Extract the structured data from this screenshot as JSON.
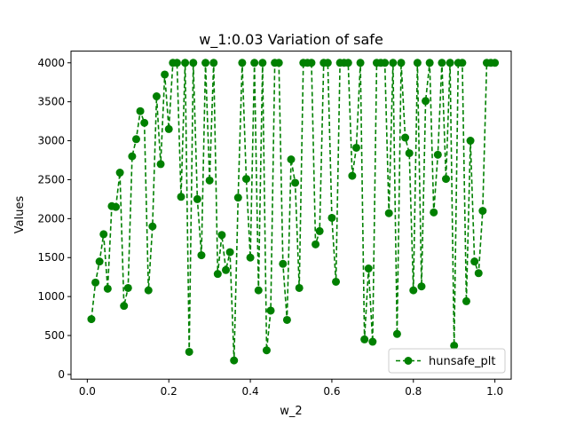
{
  "chart_data": {
    "type": "line",
    "title": "w_1:0.03 Variation of safe",
    "xlabel": "w_2",
    "ylabel": "Values",
    "xlim": [
      -0.04,
      1.04
    ],
    "ylim": [
      -60,
      4150
    ],
    "xticks": [
      0.0,
      0.2,
      0.4,
      0.6,
      0.8,
      1.0
    ],
    "xtick_labels": [
      "0.0",
      "0.2",
      "0.4",
      "0.6",
      "0.8",
      "1.0"
    ],
    "yticks": [
      0,
      500,
      1000,
      1500,
      2000,
      2500,
      3000,
      3500,
      4000
    ],
    "ytick_labels": [
      "0",
      "500",
      "1000",
      "1500",
      "2000",
      "2500",
      "3000",
      "3500",
      "4000"
    ],
    "grid": false,
    "legend_position": "lower-right",
    "series": [
      {
        "name": "hunsafe_plt",
        "color": "#008000",
        "line_style": "dashed",
        "marker": "circle",
        "x": [
          0.01,
          0.02,
          0.03,
          0.04,
          0.05,
          0.06,
          0.07,
          0.08,
          0.09,
          0.1,
          0.11,
          0.12,
          0.13,
          0.14,
          0.15,
          0.16,
          0.17,
          0.18,
          0.19,
          0.2,
          0.21,
          0.22,
          0.23,
          0.24,
          0.25,
          0.26,
          0.27,
          0.28,
          0.29,
          0.3,
          0.31,
          0.32,
          0.33,
          0.34,
          0.35,
          0.36,
          0.37,
          0.38,
          0.39,
          0.4,
          0.41,
          0.42,
          0.43,
          0.44,
          0.45,
          0.46,
          0.47,
          0.48,
          0.49,
          0.5,
          0.51,
          0.52,
          0.53,
          0.54,
          0.55,
          0.56,
          0.57,
          0.58,
          0.59,
          0.6,
          0.61,
          0.62,
          0.63,
          0.64,
          0.65,
          0.66,
          0.67,
          0.68,
          0.69,
          0.7,
          0.71,
          0.72,
          0.73,
          0.74,
          0.75,
          0.76,
          0.77,
          0.78,
          0.79,
          0.8,
          0.81,
          0.82,
          0.83,
          0.84,
          0.85,
          0.86,
          0.87,
          0.88,
          0.89,
          0.9,
          0.91,
          0.92,
          0.93,
          0.94,
          0.95,
          0.96,
          0.97,
          0.98,
          0.99,
          1.0
        ],
        "values": [
          710,
          1180,
          1450,
          1800,
          1100,
          2160,
          2150,
          2590,
          880,
          1110,
          2800,
          3020,
          3380,
          3230,
          1080,
          1900,
          3570,
          2700,
          3850,
          3150,
          4000,
          4000,
          2280,
          4000,
          290,
          4000,
          2250,
          1530,
          4000,
          2490,
          4000,
          1290,
          1790,
          1340,
          1570,
          180,
          2270,
          4000,
          2510,
          1500,
          4000,
          1080,
          4000,
          310,
          820,
          4000,
          4000,
          1420,
          700,
          2760,
          2460,
          1110,
          4000,
          4000,
          4000,
          1670,
          1840,
          4000,
          4000,
          2010,
          1190,
          4000,
          4000,
          4000,
          2550,
          2910,
          4000,
          450,
          1360,
          420,
          4000,
          4000,
          4000,
          2070,
          4000,
          520,
          4000,
          3040,
          2840,
          1080,
          4000,
          1130,
          3510,
          4000,
          2080,
          2820,
          4000,
          2510,
          4000,
          370,
          4000,
          4000,
          940,
          3000,
          1450,
          1300,
          2100,
          4000,
          4000,
          4000
        ]
      }
    ]
  }
}
